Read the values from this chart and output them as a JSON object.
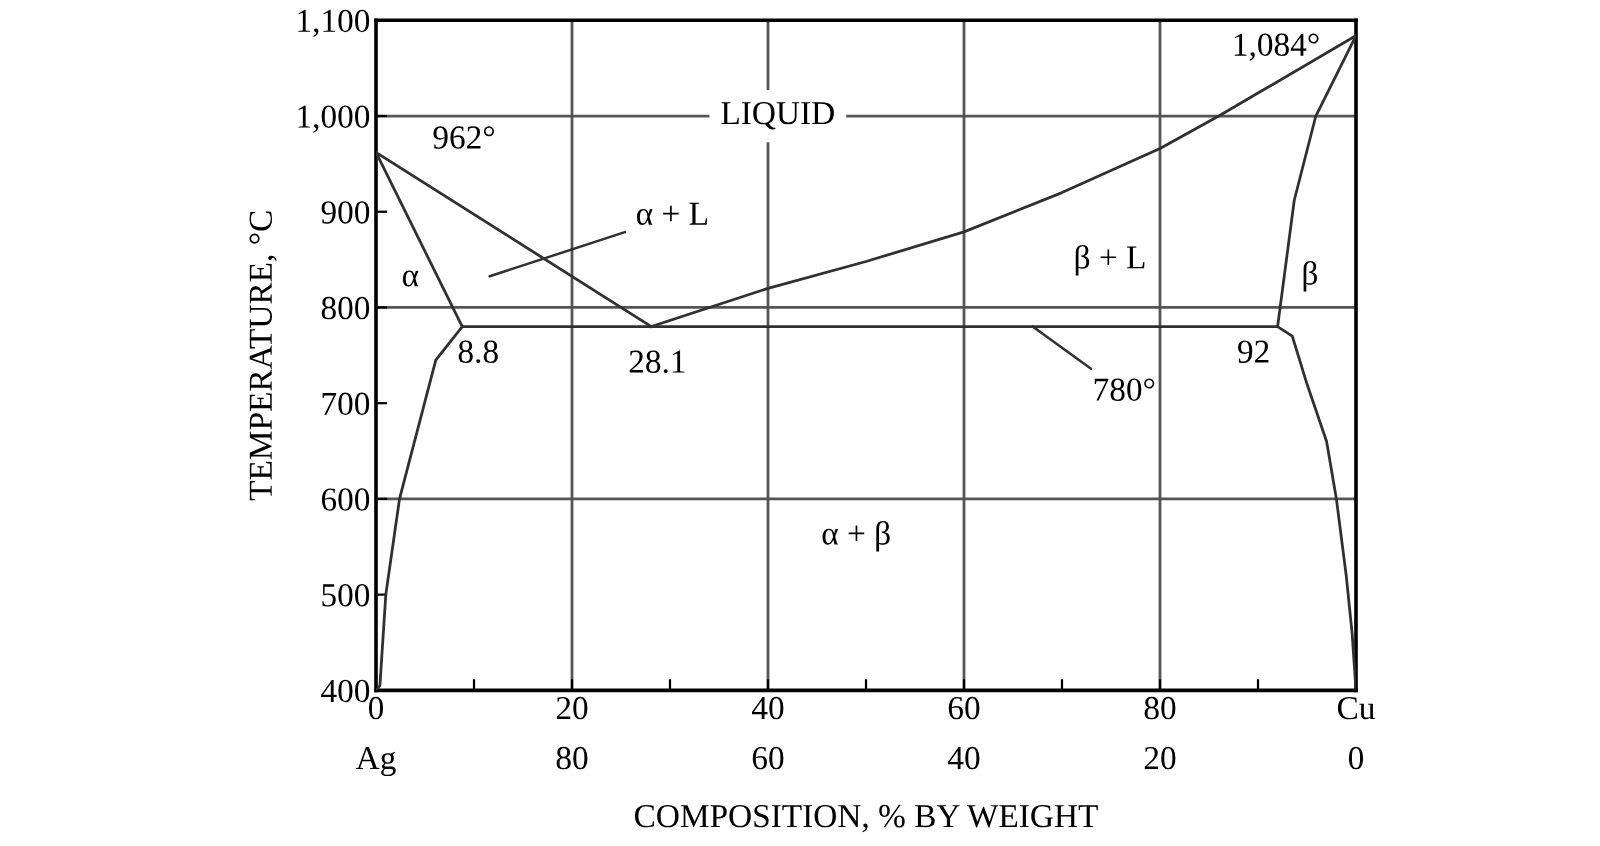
{
  "chart_data": {
    "type": "line",
    "xlabel": "COMPOSITION, % BY WEIGHT",
    "ylabel": "TEMPERATURE, °C",
    "xlim": [
      0,
      100
    ],
    "ylim": [
      400,
      1100
    ],
    "xticks": [
      0,
      20,
      40,
      60,
      80,
      {
        "value": 100,
        "label": "Cu"
      },
      {
        "value": 10,
        "label": null
      },
      {
        "value": 30,
        "label": null
      },
      {
        "value": 50,
        "label": null
      },
      {
        "value": 70,
        "label": null
      },
      {
        "value": 90,
        "label": null
      }
    ],
    "yticks": [
      400,
      500,
      600,
      700,
      800,
      900,
      {
        "value": 1000,
        "label": "1,000"
      },
      {
        "value": 1100,
        "label": "1,100"
      }
    ],
    "x2lim": [
      100,
      0
    ],
    "x2ticks": [
      {
        "value": 100,
        "label": "Ag"
      },
      80,
      60,
      40,
      20,
      0
    ],
    "grid": false,
    "legend": false,
    "marker": "none",
    "line_style": "solid",
    "series": [
      {
        "color": "#303030",
        "x": [
          0,
          28.1
        ],
        "values": [
          962,
          780
        ]
      },
      {
        "color": "#303030",
        "x": [
          28.1,
          40,
          50,
          60,
          70,
          80,
          86,
          90,
          100
        ],
        "values": [
          780,
          820,
          848,
          879,
          920,
          966,
          1000,
          1024,
          1084
        ]
      },
      {
        "color": "#303030",
        "x": [
          0,
          8.8
        ],
        "values": [
          962,
          780
        ]
      },
      {
        "color": "#303030",
        "x": [
          8.8,
          6.1,
          2.4,
          1.0,
          0.4,
          0
        ],
        "values": [
          780,
          745,
          600,
          500,
          405,
          400
        ]
      },
      {
        "color": "#303030",
        "x": [
          100,
          95.9,
          93.7,
          92
        ],
        "values": [
          1084,
          1000,
          912,
          780
        ]
      },
      {
        "color": "#303030",
        "x": [
          92,
          93.5,
          95,
          97,
          98,
          99,
          99.6,
          100
        ],
        "values": [
          780,
          770,
          720,
          660,
          600,
          520,
          460,
          400
        ]
      },
      {
        "color": "#303030",
        "x": [
          8.8,
          92
        ],
        "values": [
          780,
          780
        ]
      }
    ],
    "ref_lines": [
      {
        "axis": "x",
        "value": 20,
        "color": "#555555"
      },
      {
        "axis": "x",
        "value": 40,
        "color": "#555555"
      },
      {
        "axis": "x",
        "value": 60,
        "color": "#555555"
      },
      {
        "axis": "x",
        "value": 80,
        "color": "#555555"
      },
      {
        "axis": "y",
        "value": 600,
        "color": "#555555"
      },
      {
        "axis": "y",
        "value": 800,
        "color": "#555555"
      },
      {
        "axis": "y",
        "value": 1000,
        "color": "#555555"
      }
    ],
    "annotations": [
      {
        "text": "LIQUID",
        "x": 41,
        "y": 1000
      },
      {
        "text": "962°",
        "x": 0,
        "y": 962
      },
      "α + L",
      "α",
      {
        "text": "8.8",
        "x": 8.8,
        "y": 780
      },
      {
        "text": "28.1",
        "x": 28.1,
        "y": 780
      },
      "β + L",
      "β",
      {
        "text": "92",
        "x": 92,
        "y": 780
      },
      {
        "text": "780°",
        "x": 67,
        "y": 780
      },
      {
        "text": "1,084°",
        "x": 100,
        "y": 1084
      },
      "α + β"
    ]
  }
}
